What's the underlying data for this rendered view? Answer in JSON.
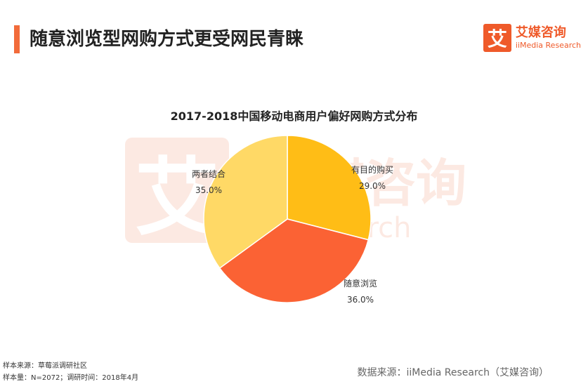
{
  "header": {
    "title": "随意浏览型网购方式更受网民青睐"
  },
  "brand": {
    "mark": "艾",
    "name": "艾媒咨询",
    "sub": "iiMedia Research"
  },
  "watermark": {
    "mark": "艾",
    "name": "媒咨询",
    "sub": "esearch"
  },
  "chart_data": {
    "type": "pie",
    "title": "2017-2018中国移动电商用户偏好网购方式分布",
    "slices": [
      {
        "label": "有目的购买",
        "value": 29.0,
        "display": "29.0%",
        "color": "#ffbd16"
      },
      {
        "label": "随意浏览",
        "value": 36.0,
        "display": "36.0%",
        "color": "#fb6234"
      },
      {
        "label": "两者结合",
        "value": 35.0,
        "display": "35.0%",
        "color": "#ffd966"
      }
    ],
    "start": "12 o'clock, clockwise"
  },
  "footer": {
    "sample_source": "样本来源：草莓派调研社区",
    "sample_size": "样本量：N=2072；调研时间：2018年4月",
    "data_source": "数据来源：iiMedia Research（艾媒咨询）"
  }
}
